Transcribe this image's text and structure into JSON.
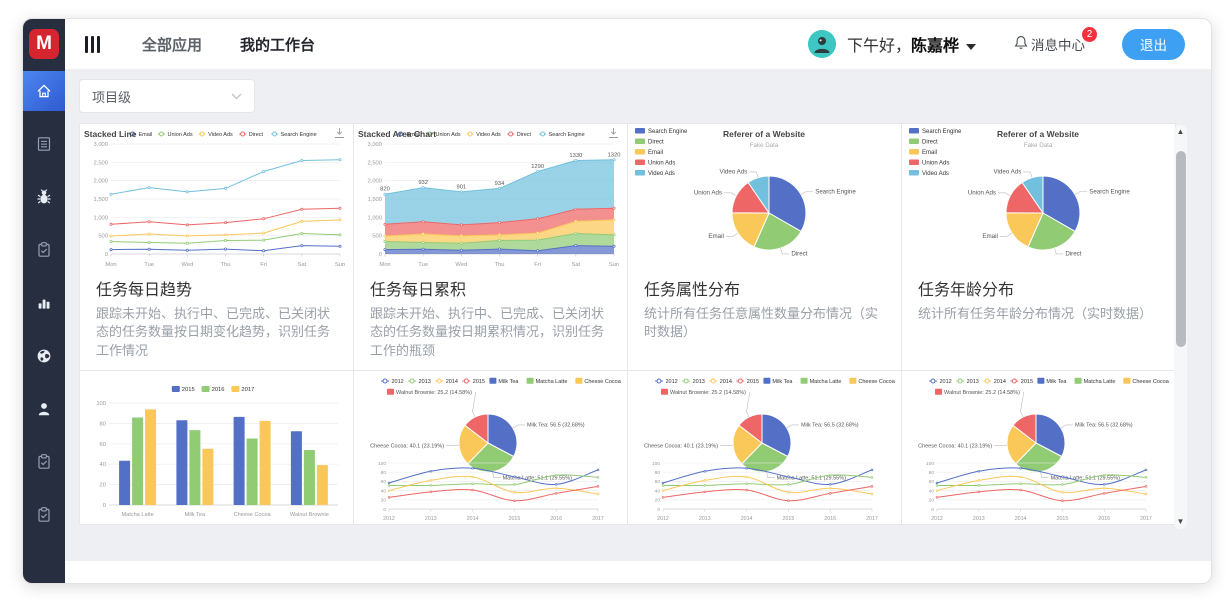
{
  "header": {
    "logo_text": "M",
    "nav": [
      {
        "label": "全部应用"
      },
      {
        "label": "我的工作台"
      }
    ],
    "greeting_prefix": "下午好，",
    "user_name": "陈嘉桦",
    "message_center_label": "消息中心",
    "message_badge": "2",
    "logout_label": "退出"
  },
  "sidebar": {
    "items": [
      {
        "icon": "home-icon",
        "active": true
      },
      {
        "icon": "document-icon"
      },
      {
        "icon": "bug-icon",
        "bright": true
      },
      {
        "icon": "clipboard-check-icon"
      },
      {
        "icon": "bar-chart-icon",
        "bright": true
      },
      {
        "icon": "globe-icon",
        "bright": true
      },
      {
        "icon": "user-icon",
        "bright": true
      },
      {
        "icon": "clipboard-check-icon"
      },
      {
        "icon": "clipboard-check-icon"
      }
    ]
  },
  "filter": {
    "selected": "项目级"
  },
  "colors": {
    "palette": [
      "#5470c6",
      "#91cc75",
      "#fac858",
      "#ee6666",
      "#73c0de"
    ],
    "accent_blue": "#3da0f2",
    "badge_red": "#f5313d",
    "avatar_teal": "#3ec7c2",
    "logo_red": "#d5252e",
    "sidebar_bg": "#272e40"
  },
  "cards": [
    {
      "chart": "stacked_line",
      "title": "任务每日趋势",
      "desc": "跟踪未开始、执行中、已完成、已关闭状态的任务数量按日期变化趋势，识别任务工作情况"
    },
    {
      "chart": "stacked_area",
      "title": "任务每日累积",
      "desc": "跟踪未开始、执行中、已完成、已关闭状态的任务数量按日期累积情况，识别任务工作的瓶颈"
    },
    {
      "chart": "pie_referer",
      "title": "任务属性分布",
      "desc": "统计所有任务任意属性数量分布情况（实时数据）"
    },
    {
      "chart": "pie_referer",
      "title": "任务年龄分布",
      "desc": "统计所有任务年龄分布情况（实时数据）"
    },
    {
      "chart": "grouped_bar"
    },
    {
      "chart": "combo"
    },
    {
      "chart": "combo"
    },
    {
      "chart": "combo"
    }
  ],
  "chart_data": {
    "stacked_line": {
      "type": "line",
      "stacked": true,
      "title": "Stacked Line",
      "legend": [
        "Email",
        "Union Ads",
        "Video Ads",
        "Direct",
        "Search Engine"
      ],
      "legend_position": "top",
      "grid": true,
      "toolbox": "download-icon",
      "x": [
        "Mon",
        "Tue",
        "Wed",
        "Thu",
        "Fri",
        "Sat",
        "Sun"
      ],
      "ylim": [
        0,
        3000
      ],
      "ytick_step": 500,
      "series": [
        {
          "name": "Email",
          "values": [
            120,
            132,
            101,
            134,
            90,
            230,
            210
          ]
        },
        {
          "name": "Union Ads",
          "values": [
            220,
            182,
            191,
            234,
            290,
            330,
            310
          ]
        },
        {
          "name": "Video Ads",
          "values": [
            150,
            232,
            201,
            154,
            190,
            330,
            410
          ]
        },
        {
          "name": "Direct",
          "values": [
            320,
            332,
            301,
            334,
            390,
            330,
            320
          ]
        },
        {
          "name": "Search Engine",
          "values": [
            820,
            932,
            901,
            934,
            1290,
            1330,
            1320
          ]
        }
      ]
    },
    "stacked_area": {
      "type": "area",
      "stacked": true,
      "title": "Stacked Area Chart",
      "legend": [
        "Email",
        "Union Ads",
        "Video Ads",
        "Direct",
        "Search Engine"
      ],
      "legend_position": "top",
      "grid": true,
      "toolbox": "download-icon",
      "x": [
        "Mon",
        "Tue",
        "Wed",
        "Thu",
        "Fri",
        "Sat",
        "Sun"
      ],
      "ylim": [
        0,
        3000
      ],
      "ytick_step": 500,
      "top_labels": [
        820,
        932,
        901,
        934,
        1290,
        1330,
        1320
      ],
      "series": [
        {
          "name": "Email",
          "values": [
            120,
            132,
            101,
            134,
            90,
            230,
            210
          ]
        },
        {
          "name": "Union Ads",
          "values": [
            220,
            182,
            191,
            234,
            290,
            330,
            310
          ]
        },
        {
          "name": "Video Ads",
          "values": [
            150,
            232,
            201,
            154,
            190,
            330,
            410
          ]
        },
        {
          "name": "Direct",
          "values": [
            320,
            332,
            301,
            334,
            390,
            330,
            320
          ]
        },
        {
          "name": "Search Engine",
          "values": [
            820,
            932,
            901,
            934,
            1290,
            1330,
            1320
          ]
        }
      ]
    },
    "pie_referer": {
      "type": "pie",
      "title": "Referer of a Website",
      "subtitle": "Fake Data",
      "legend": [
        "Search Engine",
        "Direct",
        "Email",
        "Union Ads",
        "Video Ads"
      ],
      "legend_position": "left",
      "values": [
        {
          "name": "Search Engine",
          "value": 1048
        },
        {
          "name": "Direct",
          "value": 735
        },
        {
          "name": "Email",
          "value": 580
        },
        {
          "name": "Union Ads",
          "value": 484
        },
        {
          "name": "Video Ads",
          "value": 300
        }
      ]
    },
    "grouped_bar": {
      "type": "bar",
      "legend": [
        "2015",
        "2016",
        "2017"
      ],
      "legend_position": "top",
      "categories": [
        "Matcha Latte",
        "Milk Tea",
        "Cheese Cocoa",
        "Walnut Brownie"
      ],
      "ylim": [
        0,
        100
      ],
      "ytick_step": 20,
      "grid": true,
      "series": [
        {
          "name": "2015",
          "values": [
            43.3,
            83.1,
            86.4,
            72.4
          ]
        },
        {
          "name": "2016",
          "values": [
            85.8,
            73.4,
            65.2,
            53.9
          ]
        },
        {
          "name": "2017",
          "values": [
            93.7,
            55.1,
            82.5,
            39.1
          ]
        }
      ]
    },
    "combo": {
      "type": "pie+line",
      "legend_line": [
        "2012",
        "2013",
        "2014",
        "2015"
      ],
      "legend_rect": [
        "Milk Tea",
        "Matcha Latte",
        "Cheese Cocoa"
      ],
      "legend_row2": "Walnut Brownie",
      "pie": {
        "values": [
          56.5,
          51.1,
          40.1,
          25.2
        ],
        "labels": [
          "Milk Tea: 56.5 (32.68%)",
          "Matcha Latte: 51.1 (29.55%)",
          "Cheese Cocoa: 40.1 (23.19%)",
          "Walnut Brownie: 25.2 (14.58%)"
        ]
      },
      "x": [
        "2012",
        "2013",
        "2014",
        "2015",
        "2016",
        "2017"
      ],
      "ylim": [
        0,
        100
      ],
      "ytick_step": 20,
      "grid": true,
      "series": [
        {
          "name": "Milk Tea",
          "values": [
            56.5,
            82.1,
            88.7,
            70.1,
            53.4,
            85.1
          ]
        },
        {
          "name": "Matcha Latte",
          "values": [
            51.1,
            51.4,
            55.1,
            53.3,
            73.8,
            68.7
          ]
        },
        {
          "name": "Cheese Cocoa",
          "values": [
            40.1,
            62.2,
            69.5,
            36.4,
            45.2,
            32.5
          ]
        },
        {
          "name": "Walnut Brownie",
          "values": [
            25.2,
            37.1,
            41.2,
            18,
            33.9,
            49.1
          ]
        }
      ]
    }
  }
}
